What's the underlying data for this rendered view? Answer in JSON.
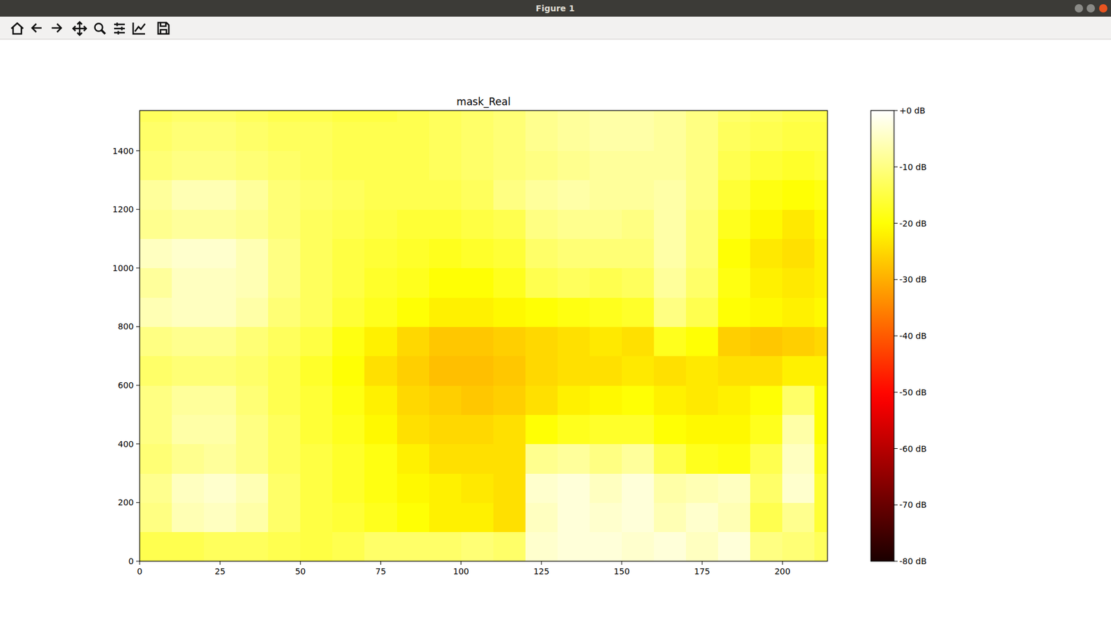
{
  "window": {
    "title": "Figure 1"
  },
  "chart_data": {
    "type": "heatmap",
    "title": "mask_Real",
    "color": "hot",
    "x_edges": [
      0,
      10,
      20,
      30,
      40,
      50,
      60,
      70,
      80,
      90,
      100,
      110,
      120,
      130,
      140,
      150,
      160,
      170,
      180,
      190,
      200,
      210,
      214
    ],
    "y_edges": [
      0,
      100,
      200,
      300,
      400,
      500,
      600,
      700,
      800,
      900,
      1000,
      1100,
      1200,
      1300,
      1400,
      1500,
      1537
    ],
    "values": [
      [
        -14,
        -14,
        -13,
        -13,
        -14,
        -15,
        -14,
        -12,
        -12,
        -12,
        -11,
        -12,
        -4,
        -3,
        -3,
        -4,
        -3,
        -5,
        -3,
        -10,
        -11,
        -13
      ],
      [
        -10,
        -6,
        -5,
        -7,
        -12,
        -15,
        -16,
        -18,
        -20,
        -22,
        -22,
        -24,
        -5,
        -3,
        -4,
        -3,
        -6,
        -4,
        -6,
        -14,
        -9,
        -16
      ],
      [
        -9,
        -5,
        -4,
        -6,
        -12,
        -15,
        -17,
        -19,
        -21,
        -22,
        -23,
        -24,
        -4,
        -3,
        -5,
        -3,
        -7,
        -6,
        -5,
        -12,
        -4,
        -16
      ],
      [
        -11,
        -9,
        -8,
        -10,
        -13,
        -15,
        -17,
        -19,
        -22,
        -24,
        -24,
        -24,
        -9,
        -8,
        -10,
        -8,
        -14,
        -18,
        -19,
        -14,
        -5,
        -18
      ],
      [
        -10,
        -7,
        -7,
        -10,
        -13,
        -16,
        -18,
        -21,
        -24,
        -25,
        -25,
        -24,
        -20,
        -18,
        -17,
        -17,
        -20,
        -21,
        -21,
        -18,
        -7,
        -20
      ],
      [
        -10,
        -8,
        -8,
        -11,
        -14,
        -16,
        -19,
        -22,
        -25,
        -26,
        -27,
        -26,
        -24,
        -22,
        -21,
        -20,
        -22,
        -23,
        -22,
        -20,
        -12,
        -20
      ],
      [
        -12,
        -11,
        -11,
        -12,
        -14,
        -17,
        -20,
        -24,
        -26,
        -28,
        -28,
        -27,
        -25,
        -24,
        -24,
        -23,
        -24,
        -23,
        -24,
        -24,
        -22,
        -22
      ],
      [
        -10,
        -9,
        -9,
        -11,
        -13,
        -15,
        -19,
        -22,
        -25,
        -27,
        -27,
        -26,
        -25,
        -24,
        -23,
        -24,
        -18,
        -20,
        -26,
        -27,
        -26,
        -25
      ],
      [
        -6,
        -5,
        -5,
        -7,
        -11,
        -13,
        -16,
        -18,
        -20,
        -22,
        -22,
        -21,
        -20,
        -19,
        -18,
        -17,
        -10,
        -14,
        -20,
        -21,
        -22,
        -21
      ],
      [
        -8,
        -5,
        -5,
        -6,
        -10,
        -13,
        -15,
        -17,
        -18,
        -20,
        -20,
        -18,
        -14,
        -13,
        -14,
        -13,
        -8,
        -12,
        -19,
        -22,
        -23,
        -22
      ],
      [
        -5,
        -4,
        -4,
        -6,
        -10,
        -13,
        -15,
        -16,
        -17,
        -18,
        -17,
        -16,
        -12,
        -11,
        -11,
        -11,
        -7,
        -11,
        -20,
        -23,
        -24,
        -22
      ],
      [
        -9,
        -8,
        -8,
        -9,
        -11,
        -13,
        -14,
        -15,
        -16,
        -16,
        -15,
        -14,
        -10,
        -9,
        -9,
        -10,
        -7,
        -11,
        -18,
        -21,
        -23,
        -21
      ],
      [
        -8,
        -6,
        -6,
        -8,
        -11,
        -12,
        -13,
        -14,
        -14,
        -14,
        -13,
        -10,
        -8,
        -7,
        -8,
        -8,
        -7,
        -10,
        -16,
        -19,
        -20,
        -19
      ],
      [
        -11,
        -10,
        -10,
        -11,
        -12,
        -13,
        -14,
        -14,
        -14,
        -13,
        -12,
        -11,
        -10,
        -9,
        -8,
        -8,
        -8,
        -10,
        -14,
        -16,
        -17,
        -16
      ],
      [
        -12,
        -11,
        -11,
        -12,
        -13,
        -13,
        -14,
        -14,
        -14,
        -13,
        -12,
        -11,
        -9,
        -8,
        -7,
        -7,
        -8,
        -10,
        -13,
        -14,
        -15,
        -15
      ],
      [
        -13,
        -12,
        -12,
        -13,
        -14,
        -14,
        -15,
        -15,
        -14,
        -13,
        -12,
        -11,
        -9,
        -8,
        -7,
        -7,
        -8,
        -10,
        -12,
        -13,
        -14,
        -14
      ]
    ],
    "xlim": [
      0,
      214
    ],
    "ylim": [
      0,
      1537
    ],
    "xticks": [
      0,
      25,
      50,
      75,
      100,
      125,
      150,
      175,
      200
    ],
    "yticks": [
      0,
      200,
      400,
      600,
      800,
      1000,
      1200,
      1400
    ],
    "colorbar": {
      "range": [
        -80,
        0
      ],
      "ticks": [
        {
          "value": 0,
          "label": "+0 dB"
        },
        {
          "value": -10,
          "label": "-10 dB"
        },
        {
          "value": -20,
          "label": "-20 dB"
        },
        {
          "value": -30,
          "label": "-30 dB"
        },
        {
          "value": -40,
          "label": "-40 dB"
        },
        {
          "value": -50,
          "label": "-50 dB"
        },
        {
          "value": -60,
          "label": "-60 dB"
        },
        {
          "value": -70,
          "label": "-70 dB"
        },
        {
          "value": -80,
          "label": "-80 dB"
        }
      ]
    }
  }
}
